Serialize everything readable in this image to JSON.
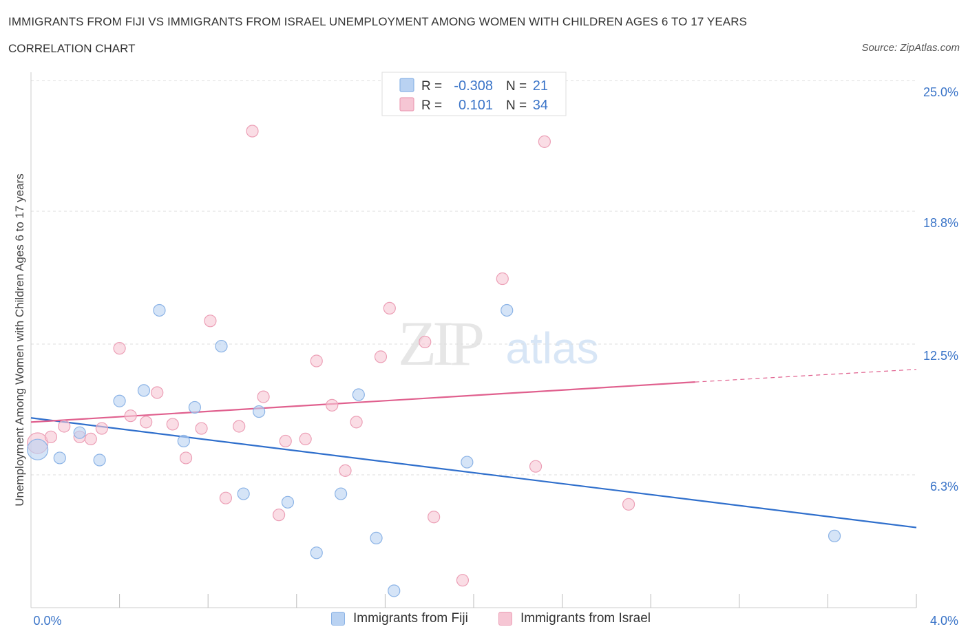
{
  "header": {
    "title": "IMMIGRANTS FROM FIJI VS IMMIGRANTS FROM ISRAEL UNEMPLOYMENT AMONG WOMEN WITH CHILDREN AGES 6 TO 17 YEARS",
    "subtitle": "CORRELATION CHART",
    "source": "Source: ZipAtlas.com"
  },
  "watermark": {
    "zip": "ZIP",
    "atlas": "atlas"
  },
  "stats_legend": [
    {
      "r_label": "R =",
      "r_value": "-0.308",
      "n_label": "N =",
      "n_value": "21"
    },
    {
      "r_label": "R =",
      "r_value": "0.101",
      "n_label": "N =",
      "n_value": "34"
    }
  ],
  "colors": {
    "fiji_fill": "#b9d2f2",
    "fiji_stroke": "#8bb3e6",
    "fiji_line": "#2f6fcc",
    "israel_fill": "#f6c6d4",
    "israel_stroke": "#ec9fb6",
    "israel_line": "#e0608e",
    "value_text": "#3a74c8",
    "axis_label": "#3a74c8"
  },
  "chart_data": {
    "type": "scatter",
    "title": "IMMIGRANTS FROM FIJI VS IMMIGRANTS FROM ISRAEL UNEMPLOYMENT AMONG WOMEN WITH CHILDREN AGES 6 TO 17 YEARS",
    "subtitle": "CORRELATION CHART",
    "xlabel": "",
    "ylabel": "Unemployment Among Women with Children Ages 6 to 17 years",
    "xlim": [
      0.0,
      4.0
    ],
    "ylim": [
      0.0,
      25.0
    ],
    "x_tick_labels": [
      "0.0%",
      "4.0%"
    ],
    "y_tick_labels": [
      "6.3%",
      "12.5%",
      "18.8%",
      "25.0%"
    ],
    "y_tick_values": [
      6.3,
      12.5,
      18.8,
      25.0
    ],
    "grid": "horizontal dashed",
    "legend_position": "bottom",
    "series": [
      {
        "name": "Immigrants from Fiji",
        "r": -0.308,
        "n": 21,
        "trend": {
          "x": [
            0.0,
            4.0
          ],
          "y": [
            9.0,
            3.8
          ]
        },
        "points": [
          {
            "x": 0.03,
            "y": 7.5,
            "size": "large"
          },
          {
            "x": 0.13,
            "y": 7.1
          },
          {
            "x": 0.22,
            "y": 8.3
          },
          {
            "x": 0.31,
            "y": 7.0
          },
          {
            "x": 0.4,
            "y": 9.8
          },
          {
            "x": 0.51,
            "y": 10.3
          },
          {
            "x": 0.58,
            "y": 14.1
          },
          {
            "x": 0.69,
            "y": 7.9
          },
          {
            "x": 0.74,
            "y": 9.5
          },
          {
            "x": 0.86,
            "y": 12.4
          },
          {
            "x": 0.96,
            "y": 5.4
          },
          {
            "x": 1.03,
            "y": 9.3
          },
          {
            "x": 1.16,
            "y": 5.0
          },
          {
            "x": 1.29,
            "y": 2.6
          },
          {
            "x": 1.4,
            "y": 5.4
          },
          {
            "x": 1.48,
            "y": 10.1
          },
          {
            "x": 1.56,
            "y": 3.3
          },
          {
            "x": 1.64,
            "y": 0.8
          },
          {
            "x": 1.97,
            "y": 6.9
          },
          {
            "x": 2.15,
            "y": 14.1
          },
          {
            "x": 3.63,
            "y": 3.4
          }
        ]
      },
      {
        "name": "Immigrants from Israel",
        "r": 0.101,
        "n": 34,
        "trend": {
          "x": [
            0.0,
            3.0
          ],
          "y": [
            8.8,
            10.7
          ]
        },
        "trend_dashed": {
          "x": [
            3.0,
            4.0
          ],
          "y": [
            10.7,
            11.3
          ]
        },
        "points": [
          {
            "x": 0.03,
            "y": 7.8,
            "size": "large"
          },
          {
            "x": 0.09,
            "y": 8.1
          },
          {
            "x": 0.15,
            "y": 8.6
          },
          {
            "x": 0.22,
            "y": 8.1
          },
          {
            "x": 0.27,
            "y": 8.0
          },
          {
            "x": 0.32,
            "y": 8.5
          },
          {
            "x": 0.4,
            "y": 12.3
          },
          {
            "x": 0.45,
            "y": 9.1
          },
          {
            "x": 0.52,
            "y": 8.8
          },
          {
            "x": 0.57,
            "y": 10.2
          },
          {
            "x": 0.64,
            "y": 8.7
          },
          {
            "x": 0.7,
            "y": 7.1
          },
          {
            "x": 0.77,
            "y": 8.5
          },
          {
            "x": 0.81,
            "y": 13.6
          },
          {
            "x": 0.88,
            "y": 5.2
          },
          {
            "x": 0.94,
            "y": 8.6
          },
          {
            "x": 1.0,
            "y": 22.6
          },
          {
            "x": 1.05,
            "y": 10.0
          },
          {
            "x": 1.12,
            "y": 4.4
          },
          {
            "x": 1.15,
            "y": 7.9
          },
          {
            "x": 1.24,
            "y": 8.0
          },
          {
            "x": 1.29,
            "y": 11.7
          },
          {
            "x": 1.36,
            "y": 9.6
          },
          {
            "x": 1.42,
            "y": 6.5
          },
          {
            "x": 1.47,
            "y": 8.8
          },
          {
            "x": 1.58,
            "y": 11.9
          },
          {
            "x": 1.62,
            "y": 14.2
          },
          {
            "x": 1.78,
            "y": 12.6
          },
          {
            "x": 1.82,
            "y": 4.3
          },
          {
            "x": 1.95,
            "y": 1.3
          },
          {
            "x": 2.13,
            "y": 15.6
          },
          {
            "x": 2.28,
            "y": 6.7
          },
          {
            "x": 2.32,
            "y": 22.1
          },
          {
            "x": 2.7,
            "y": 4.9
          }
        ]
      }
    ]
  }
}
